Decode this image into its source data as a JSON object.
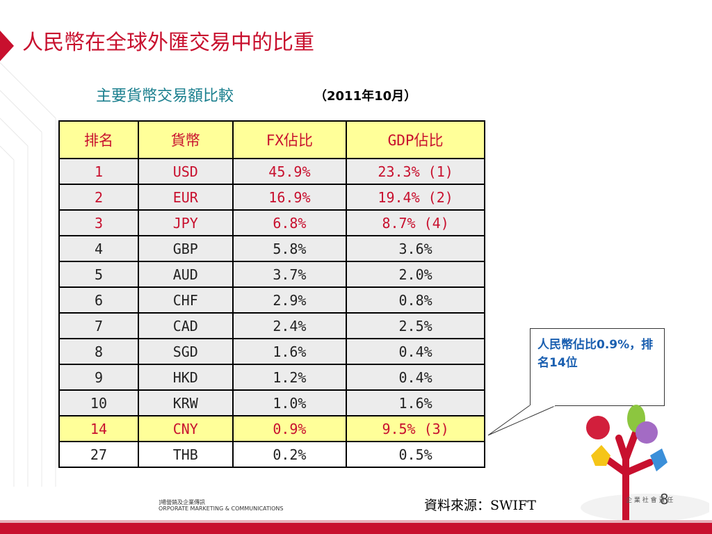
{
  "title": "人民幣在全球外匯交易中的比重",
  "subtitle": "主要貨幣交易額比較",
  "subtitle_date": "（2011年10月）",
  "table": {
    "headers": [
      "排名",
      "貨幣",
      "FX佔比",
      "GDP佔比"
    ],
    "rows": [
      [
        "1",
        "USD",
        "45.9%",
        "23.3% (1)"
      ],
      [
        "2",
        "EUR",
        "16.9%",
        "19.4% (2)"
      ],
      [
        "3",
        "JPY",
        "6.8%",
        "8.7% (4)"
      ],
      [
        "4",
        "GBP",
        "5.8%",
        "3.6%"
      ],
      [
        "5",
        "AUD",
        "3.7%",
        "2.0%"
      ],
      [
        "6",
        "CHF",
        "2.9%",
        "0.8%"
      ],
      [
        "7",
        "CAD",
        "2.4%",
        "2.5%"
      ],
      [
        "8",
        "SGD",
        "1.6%",
        "0.4%"
      ],
      [
        "9",
        "HKD",
        "1.2%",
        "0.4%"
      ],
      [
        "10",
        "KRW",
        "1.0%",
        "1.6%"
      ],
      [
        "14",
        "CNY",
        "0.9%",
        "9.5% (3)"
      ],
      [
        "27",
        "THB",
        "0.2%",
        "0.5%"
      ]
    ]
  },
  "callout": "人民幣佔比0.9%，排名14位",
  "source": "資料來源：SWIFT",
  "page_number": "8",
  "footer_cn": "]場營銷及企業傳訊",
  "footer_en": "ORPORATE MARKETING & COMMUNICATIONS",
  "csr_label": "企 業 社 會 責 任",
  "colors": {
    "accent": "#c8102e",
    "highlight": "#ffff99",
    "subtitle": "#1a7f8e",
    "callout_text": "#1a5fb0"
  }
}
